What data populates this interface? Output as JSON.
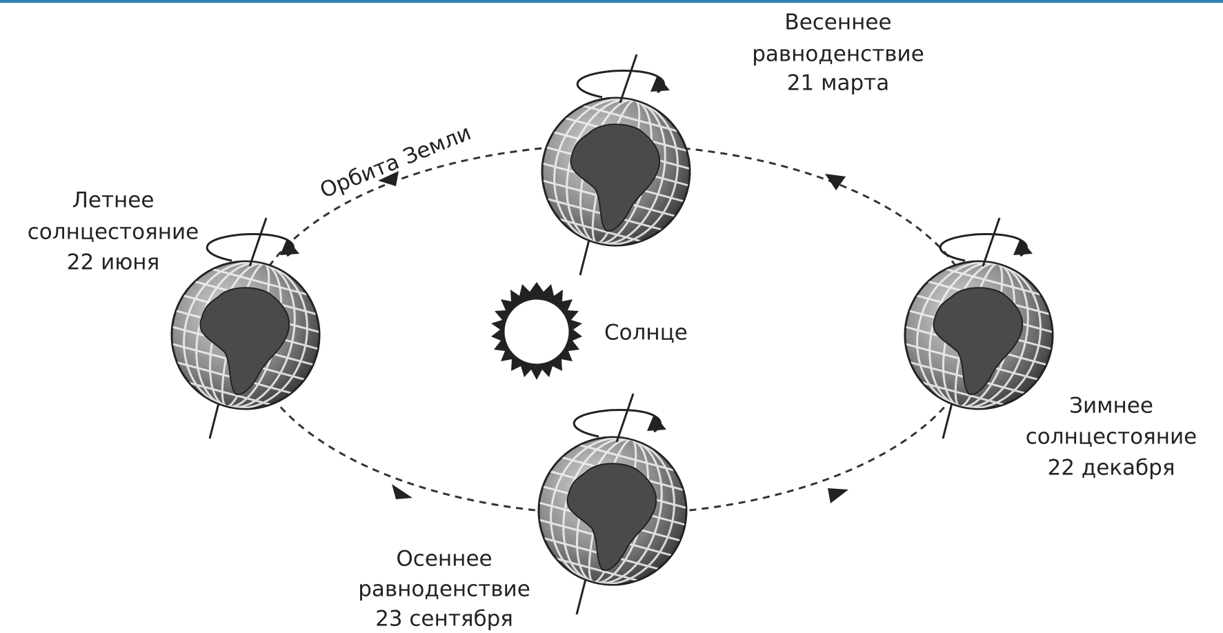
{
  "orbit_label": "Орбита Земли",
  "sun_label": "Солнце",
  "positions": [
    {
      "lines": [
        "Весеннее",
        "равноденствие",
        "21 марта"
      ]
    },
    {
      "lines": [
        "Летнее",
        "солнцестояние",
        "22 июня"
      ]
    },
    {
      "lines": [
        "Зимнее",
        "солнцестояние",
        "22 декабря"
      ]
    },
    {
      "lines": [
        "Осеннее",
        "равноденствие",
        "23 сентября"
      ]
    }
  ]
}
